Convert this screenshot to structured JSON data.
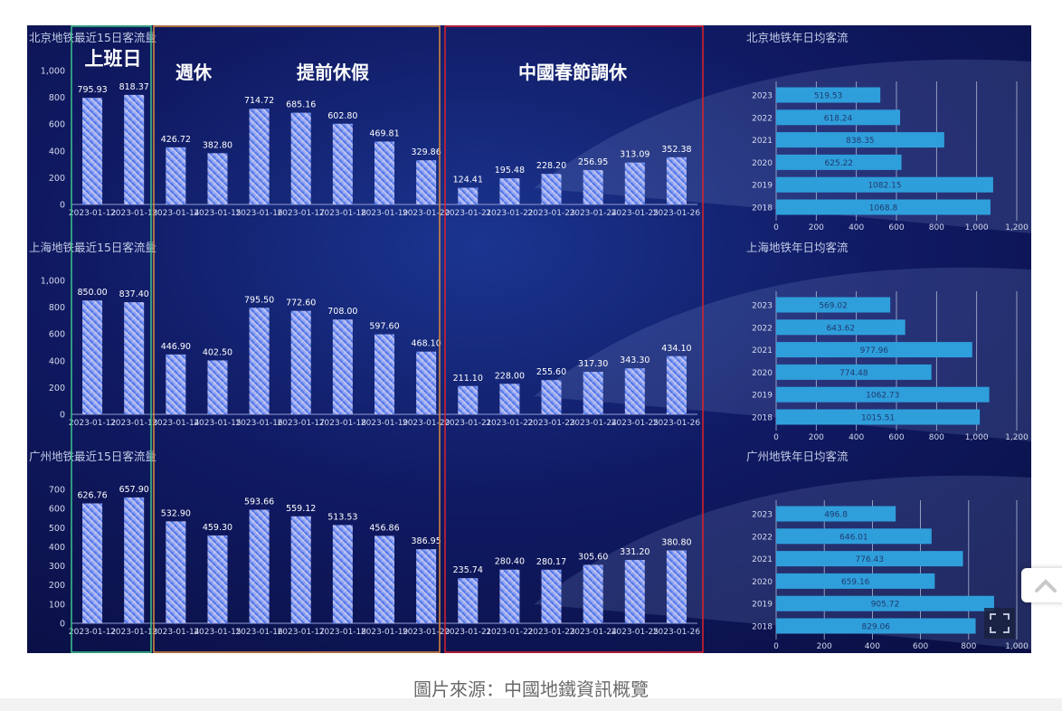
{
  "caption": "圖片來源：中國地鐵資訊概覽",
  "annotations": {
    "workday": "上班日",
    "weekend": "週休",
    "early_holiday": "提前休假",
    "spring_festival": "中國春節調休"
  },
  "colors": {
    "background": "#0d1550",
    "bar_top": "#c9c3ee",
    "bar_bottom": "#2e63e8",
    "hbar": "#2f9fdc",
    "box_workday": "#3cc48a",
    "box_weekend": "#e08a3c",
    "box_spring": "#e0202a"
  },
  "icons": [
    "fullscreen-icon",
    "chevron-up-icon"
  ],
  "chart_data": [
    {
      "type": "bar",
      "title": "北京地铁最近15日客流量",
      "categories": [
        "2023-01-12",
        "2023-01-13",
        "2023-01-14",
        "2023-01-15",
        "2023-01-16",
        "2023-01-17",
        "2023-01-18",
        "2023-01-19",
        "2023-01-20",
        "2023-01-21",
        "2023-01-22",
        "2023-01-23",
        "2023-01-24",
        "2023-01-25",
        "2023-01-26"
      ],
      "values": [
        795.93,
        818.37,
        426.72,
        382.8,
        714.72,
        685.16,
        602.8,
        469.81,
        329.86,
        124.41,
        195.48,
        228.2,
        256.95,
        313.09,
        352.38
      ],
      "labels": [
        "795.93",
        "818.37",
        "426.72",
        "382.80",
        "714.72",
        "685.16",
        "602.80",
        "469.81",
        "329.86",
        "124.41",
        "195.48",
        "228.20",
        "256.95",
        "313.09",
        "352.38"
      ],
      "ylim": [
        0,
        1000
      ],
      "yticks": [
        "0",
        "200",
        "400",
        "600",
        "800",
        "1,000"
      ],
      "grid": false
    },
    {
      "type": "bar",
      "title": "上海地铁最近15日客流量",
      "categories": [
        "2023-01-12",
        "2023-01-13",
        "2023-01-14",
        "2023-01-15",
        "2023-01-16",
        "2023-01-17",
        "2023-01-18",
        "2023-01-19",
        "2023-01-20",
        "2023-01-21",
        "2023-01-22",
        "2023-01-23",
        "2023-01-24",
        "2023-01-25",
        "2023-01-26"
      ],
      "values": [
        850.0,
        837.4,
        446.9,
        402.5,
        795.5,
        772.6,
        708.0,
        597.6,
        468.1,
        211.1,
        228.0,
        255.6,
        317.3,
        343.3,
        434.1
      ],
      "labels": [
        "850.00",
        "837.40",
        "446.90",
        "402.50",
        "795.50",
        "772.60",
        "708.00",
        "597.60",
        "468.10",
        "211.10",
        "228.00",
        "255.60",
        "317.30",
        "343.30",
        "434.10"
      ],
      "ylim": [
        0,
        1000
      ],
      "yticks": [
        "0",
        "200",
        "400",
        "600",
        "800",
        "1,000"
      ],
      "grid": false
    },
    {
      "type": "bar",
      "title": "广州地铁最近15日客流量",
      "categories": [
        "2023-01-12",
        "2023-01-13",
        "2023-01-14",
        "2023-01-15",
        "2023-01-16",
        "2023-01-17",
        "2023-01-18",
        "2023-01-19",
        "2023-01-20",
        "2023-01-21",
        "2023-01-22",
        "2023-01-23",
        "2023-01-24",
        "2023-01-25",
        "2023-01-26"
      ],
      "values": [
        626.76,
        657.9,
        532.9,
        459.3,
        593.66,
        559.12,
        513.53,
        456.86,
        386.95,
        235.74,
        280.4,
        280.17,
        305.6,
        331.2,
        380.8
      ],
      "labels": [
        "626.76",
        "657.90",
        "532.90",
        "459.30",
        "593.66",
        "559.12",
        "513.53",
        "456.86",
        "386.95",
        "235.74",
        "280.40",
        "280.17",
        "305.60",
        "331.20",
        "380.80"
      ],
      "ylim": [
        0,
        700
      ],
      "yticks": [
        "0",
        "100",
        "200",
        "300",
        "400",
        "500",
        "600",
        "700"
      ],
      "grid": false
    },
    {
      "type": "bar",
      "orientation": "horizontal",
      "title": "北京地铁年日均客流",
      "categories": [
        "2023",
        "2022",
        "2021",
        "2020",
        "2019",
        "2018"
      ],
      "values": [
        519.53,
        618.24,
        838.35,
        625.22,
        1082.15,
        1068.8
      ],
      "labels": [
        "519.53",
        "618.24",
        "838.35",
        "625.22",
        "1082.15",
        "1068.8"
      ],
      "xlim": [
        0,
        1200
      ],
      "xticks": [
        "0",
        "200",
        "400",
        "600",
        "800",
        "1,000",
        "1,200"
      ],
      "grid": true
    },
    {
      "type": "bar",
      "orientation": "horizontal",
      "title": "上海地铁年日均客流",
      "categories": [
        "2023",
        "2022",
        "2021",
        "2020",
        "2019",
        "2018"
      ],
      "values": [
        569.02,
        643.62,
        977.96,
        774.48,
        1062.73,
        1015.51
      ],
      "labels": [
        "569.02",
        "643.62",
        "977.96",
        "774.48",
        "1062.73",
        "1015.51"
      ],
      "xlim": [
        0,
        1200
      ],
      "xticks": [
        "0",
        "200",
        "400",
        "600",
        "800",
        "1,000",
        "1,200"
      ],
      "grid": true
    },
    {
      "type": "bar",
      "orientation": "horizontal",
      "title": "广州地铁年日均客流",
      "categories": [
        "2023",
        "2022",
        "2021",
        "2020",
        "2019",
        "2018"
      ],
      "values": [
        496.8,
        646.01,
        776.43,
        659.16,
        905.72,
        829.06
      ],
      "labels": [
        "496.8",
        "646.01",
        "776.43",
        "659.16",
        "905.72",
        "829.06"
      ],
      "xlim": [
        0,
        1000
      ],
      "xticks": [
        "0",
        "200",
        "400",
        "600",
        "800",
        "1,000"
      ],
      "grid": true
    }
  ]
}
